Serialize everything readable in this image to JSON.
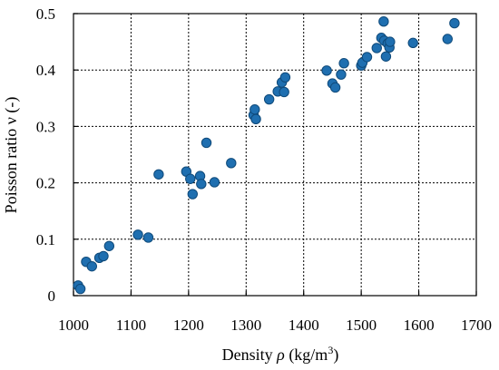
{
  "chart_data": {
    "type": "scatter",
    "xlabel_prefix": "Density ",
    "xlabel_symbol": "ρ",
    "xlabel_unit_prefix": " (kg/m",
    "xlabel_unit_sup": "3",
    "xlabel_unit_suffix": ")",
    "ylabel": "Poisson ratio ν (-)",
    "xlim": [
      1000,
      1700
    ],
    "ylim": [
      0,
      0.5
    ],
    "xticks": [
      "1000",
      "1100",
      "1200",
      "1300",
      "1400",
      "1500",
      "1600",
      "1700"
    ],
    "yticks": [
      "0",
      "0.1",
      "0.2",
      "0.3",
      "0.4",
      "0.5"
    ],
    "grid": true,
    "marker_color": "#1f6fb0",
    "marker_edge": "#0f4a7a",
    "series": [
      {
        "points": [
          [
            1008,
            0.018
          ],
          [
            1012,
            0.012
          ],
          [
            1022,
            0.06
          ],
          [
            1032,
            0.052
          ],
          [
            1045,
            0.067
          ],
          [
            1052,
            0.07
          ],
          [
            1062,
            0.088
          ],
          [
            1112,
            0.108
          ],
          [
            1130,
            0.103
          ],
          [
            1148,
            0.215
          ],
          [
            1196,
            0.22
          ],
          [
            1203,
            0.207
          ],
          [
            1207,
            0.18
          ],
          [
            1220,
            0.212
          ],
          [
            1222,
            0.198
          ],
          [
            1231,
            0.271
          ],
          [
            1245,
            0.201
          ],
          [
            1274,
            0.235
          ],
          [
            1313,
            0.32
          ],
          [
            1315,
            0.33
          ],
          [
            1317,
            0.313
          ],
          [
            1340,
            0.348
          ],
          [
            1355,
            0.362
          ],
          [
            1362,
            0.378
          ],
          [
            1366,
            0.361
          ],
          [
            1368,
            0.387
          ],
          [
            1440,
            0.399
          ],
          [
            1450,
            0.376
          ],
          [
            1455,
            0.369
          ],
          [
            1465,
            0.392
          ],
          [
            1470,
            0.412
          ],
          [
            1500,
            0.408
          ],
          [
            1502,
            0.413
          ],
          [
            1510,
            0.423
          ],
          [
            1527,
            0.439
          ],
          [
            1535,
            0.457
          ],
          [
            1539,
            0.486
          ],
          [
            1540,
            0.452
          ],
          [
            1543,
            0.424
          ],
          [
            1546,
            0.447
          ],
          [
            1549,
            0.44
          ],
          [
            1550,
            0.45
          ],
          [
            1590,
            0.448
          ],
          [
            1650,
            0.455
          ],
          [
            1662,
            0.483
          ]
        ]
      }
    ]
  }
}
